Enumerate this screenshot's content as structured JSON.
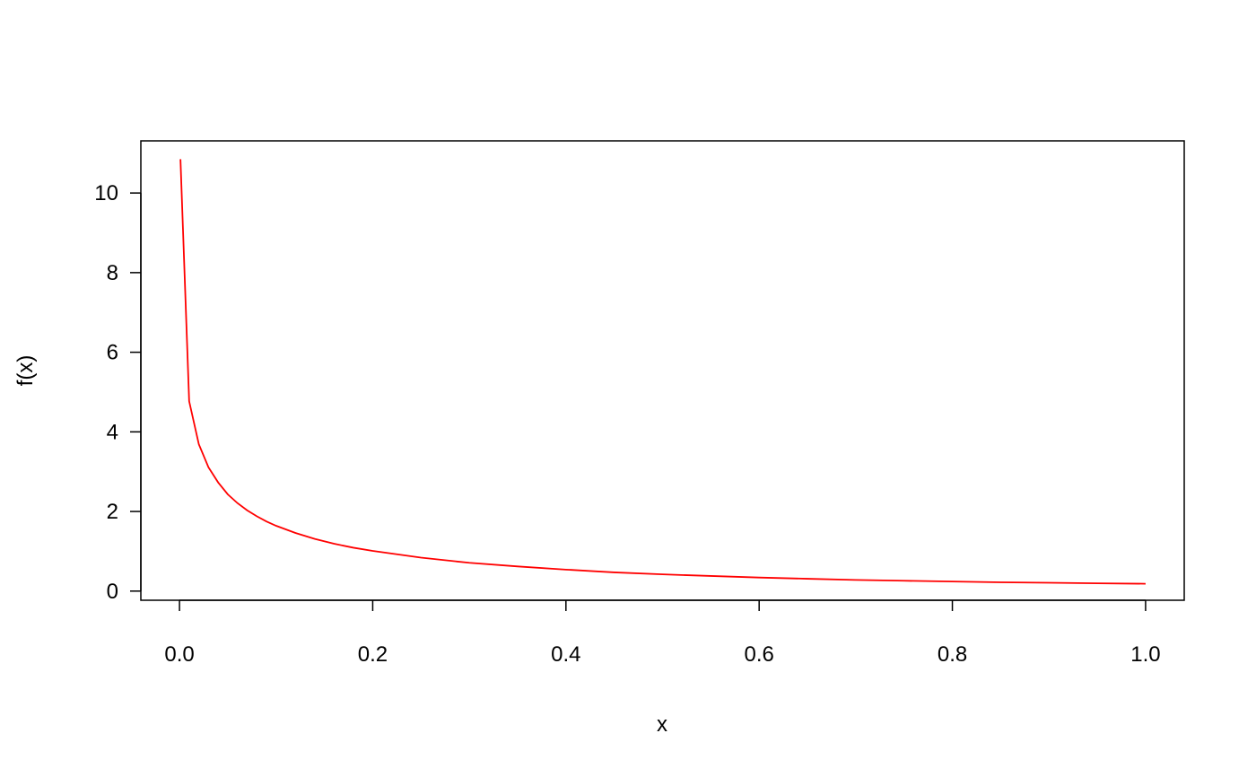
{
  "chart_data": {
    "type": "line",
    "title": "",
    "xlabel": "x",
    "ylabel": "f(x)",
    "xlim": [
      -0.04,
      1.04
    ],
    "ylim": [
      -0.23,
      11.31
    ],
    "x_ticks": [
      0.0,
      0.2,
      0.4,
      0.6,
      0.8,
      1.0
    ],
    "x_tick_labels": [
      "0.0",
      "0.2",
      "0.4",
      "0.6",
      "0.8",
      "1.0"
    ],
    "y_ticks": [
      0,
      2,
      4,
      6,
      8,
      10
    ],
    "y_tick_labels": [
      "0",
      "2",
      "4",
      "6",
      "8",
      "10"
    ],
    "grid": false,
    "series": [
      {
        "color": "#ff0000",
        "x": [
          0.001,
          0.01,
          0.02,
          0.03,
          0.04,
          0.05,
          0.06,
          0.07,
          0.08,
          0.09,
          0.1,
          0.12,
          0.14,
          0.16,
          0.18,
          0.2,
          0.25,
          0.3,
          0.35,
          0.4,
          0.45,
          0.5,
          0.55,
          0.6,
          0.65,
          0.7,
          0.75,
          0.8,
          0.85,
          0.9,
          0.95,
          1.0
        ],
        "y": [
          10.85,
          4.77,
          3.69,
          3.11,
          2.73,
          2.43,
          2.21,
          2.03,
          1.88,
          1.75,
          1.64,
          1.46,
          1.31,
          1.19,
          1.09,
          1.01,
          0.84,
          0.71,
          0.62,
          0.54,
          0.47,
          0.42,
          0.38,
          0.34,
          0.31,
          0.28,
          0.26,
          0.24,
          0.22,
          0.21,
          0.195,
          0.185
        ]
      }
    ]
  }
}
